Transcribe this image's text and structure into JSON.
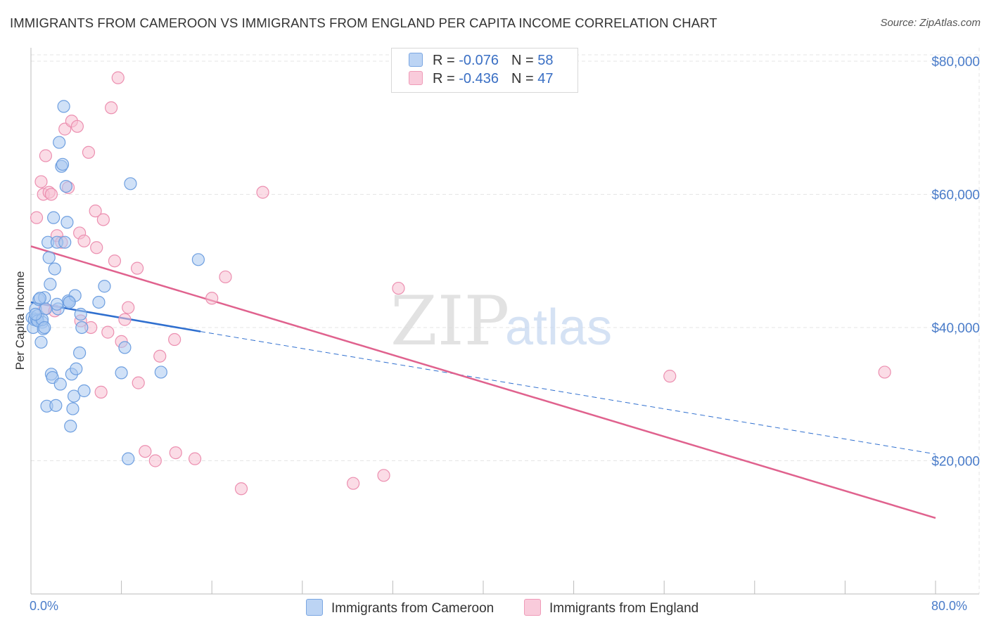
{
  "title": "IMMIGRANTS FROM CAMEROON VS IMMIGRANTS FROM ENGLAND PER CAPITA INCOME CORRELATION CHART",
  "source": "Source: ZipAtlas.com",
  "watermark": {
    "zip": "ZIP",
    "atlas": "atlas"
  },
  "colors": {
    "cameroon_fill": "#a9c8f0",
    "cameroon_stroke": "#6e9fe0",
    "cameroon_line": "#2f6fcf",
    "england_fill": "#f7bfd2",
    "england_stroke": "#ec8fb0",
    "england_line": "#e0628e",
    "axis_text": "#4a7cc9",
    "grid": "#e5e5e5"
  },
  "legend": {
    "rows": [
      {
        "r_label": "R = ",
        "r_value": "-0.076",
        "n_label": "N = ",
        "n_value": "58"
      },
      {
        "r_label": "R = ",
        "r_value": "-0.436",
        "n_label": "N = ",
        "n_value": "47"
      }
    ]
  },
  "bottom_legend": [
    "Immigrants from Cameroon",
    "Immigrants from England"
  ],
  "chart_data": {
    "type": "scatter",
    "title": "IMMIGRANTS FROM CAMEROON VS IMMIGRANTS FROM ENGLAND PER CAPITA INCOME CORRELATION CHART",
    "xlabel": "",
    "ylabel": "Per Capita Income",
    "xlim": [
      0,
      80
    ],
    "ylim": [
      0,
      82000
    ],
    "x_tick_labels": [
      "0.0%",
      "80.0%"
    ],
    "y_ticks": [
      20000,
      40000,
      60000,
      80000
    ],
    "y_tick_labels": [
      "$20,000",
      "$40,000",
      "$60,000",
      "$80,000"
    ],
    "series": [
      {
        "name": "Immigrants from Cameroon",
        "r": -0.076,
        "n": 58,
        "trend": {
          "x": [
            0,
            15
          ],
          "y": [
            43800,
            39400
          ],
          "dashed_to": [
            80,
            21000
          ]
        },
        "points": [
          [
            0.1,
            41500
          ],
          [
            0.2,
            40000
          ],
          [
            0.3,
            41200
          ],
          [
            0.4,
            42800
          ],
          [
            0.5,
            41200
          ],
          [
            0.6,
            41800
          ],
          [
            0.7,
            44200
          ],
          [
            0.9,
            37800
          ],
          [
            1.0,
            40800
          ],
          [
            1.1,
            39800
          ],
          [
            1.2,
            44500
          ],
          [
            1.3,
            42800
          ],
          [
            1.4,
            28200
          ],
          [
            1.5,
            52800
          ],
          [
            1.6,
            50500
          ],
          [
            1.7,
            46500
          ],
          [
            1.8,
            33000
          ],
          [
            1.9,
            32500
          ],
          [
            2.0,
            56500
          ],
          [
            2.1,
            48800
          ],
          [
            2.2,
            28300
          ],
          [
            2.3,
            52800
          ],
          [
            2.4,
            42800
          ],
          [
            2.5,
            67800
          ],
          [
            2.6,
            31500
          ],
          [
            2.7,
            64200
          ],
          [
            2.8,
            64500
          ],
          [
            2.9,
            73200
          ],
          [
            3.0,
            52800
          ],
          [
            3.1,
            61200
          ],
          [
            3.2,
            55800
          ],
          [
            3.3,
            44000
          ],
          [
            3.4,
            43800
          ],
          [
            3.5,
            25200
          ],
          [
            3.6,
            33000
          ],
          [
            3.7,
            27800
          ],
          [
            3.8,
            29700
          ],
          [
            3.9,
            44800
          ],
          [
            4.0,
            33800
          ],
          [
            4.3,
            36200
          ],
          [
            4.4,
            42000
          ],
          [
            4.5,
            40000
          ],
          [
            4.7,
            30500
          ],
          [
            6.0,
            43800
          ],
          [
            6.5,
            46200
          ],
          [
            8.0,
            33200
          ],
          [
            8.3,
            37000
          ],
          [
            8.6,
            20300
          ],
          [
            8.8,
            61600
          ],
          [
            11.5,
            33300
          ],
          [
            14.8,
            50200
          ],
          [
            0.6,
            41000
          ],
          [
            1.0,
            41200
          ],
          [
            0.8,
            44400
          ],
          [
            1.2,
            40000
          ],
          [
            2.3,
            43500
          ],
          [
            3.4,
            43800
          ],
          [
            0.4,
            42000
          ]
        ]
      },
      {
        "name": "Immigrants from England",
        "r": -0.436,
        "n": 47,
        "trend": {
          "x": [
            0,
            80
          ],
          "y": [
            52200,
            11400
          ]
        },
        "points": [
          [
            0.5,
            56500
          ],
          [
            0.9,
            61900
          ],
          [
            1.1,
            60000
          ],
          [
            1.2,
            42800
          ],
          [
            1.3,
            65800
          ],
          [
            1.6,
            60300
          ],
          [
            1.8,
            60000
          ],
          [
            2.1,
            42500
          ],
          [
            2.3,
            53800
          ],
          [
            2.7,
            52800
          ],
          [
            3.0,
            69800
          ],
          [
            3.3,
            61000
          ],
          [
            3.6,
            71000
          ],
          [
            4.1,
            70200
          ],
          [
            4.3,
            54200
          ],
          [
            4.4,
            41000
          ],
          [
            4.7,
            53000
          ],
          [
            5.1,
            66300
          ],
          [
            5.3,
            40000
          ],
          [
            5.7,
            57500
          ],
          [
            5.8,
            52000
          ],
          [
            6.2,
            30300
          ],
          [
            6.4,
            56200
          ],
          [
            6.8,
            39300
          ],
          [
            7.1,
            73000
          ],
          [
            7.4,
            50000
          ],
          [
            7.7,
            77500
          ],
          [
            8.0,
            37900
          ],
          [
            8.3,
            41200
          ],
          [
            8.6,
            43000
          ],
          [
            9.4,
            48900
          ],
          [
            9.5,
            31700
          ],
          [
            10.1,
            21400
          ],
          [
            11.0,
            20000
          ],
          [
            11.4,
            35700
          ],
          [
            12.7,
            38200
          ],
          [
            12.8,
            21200
          ],
          [
            14.5,
            20300
          ],
          [
            16.0,
            44400
          ],
          [
            17.2,
            47600
          ],
          [
            18.6,
            15800
          ],
          [
            20.5,
            60300
          ],
          [
            28.5,
            16600
          ],
          [
            31.2,
            17800
          ],
          [
            32.5,
            45900
          ],
          [
            56.5,
            32700
          ],
          [
            75.5,
            33300
          ]
        ]
      }
    ]
  }
}
